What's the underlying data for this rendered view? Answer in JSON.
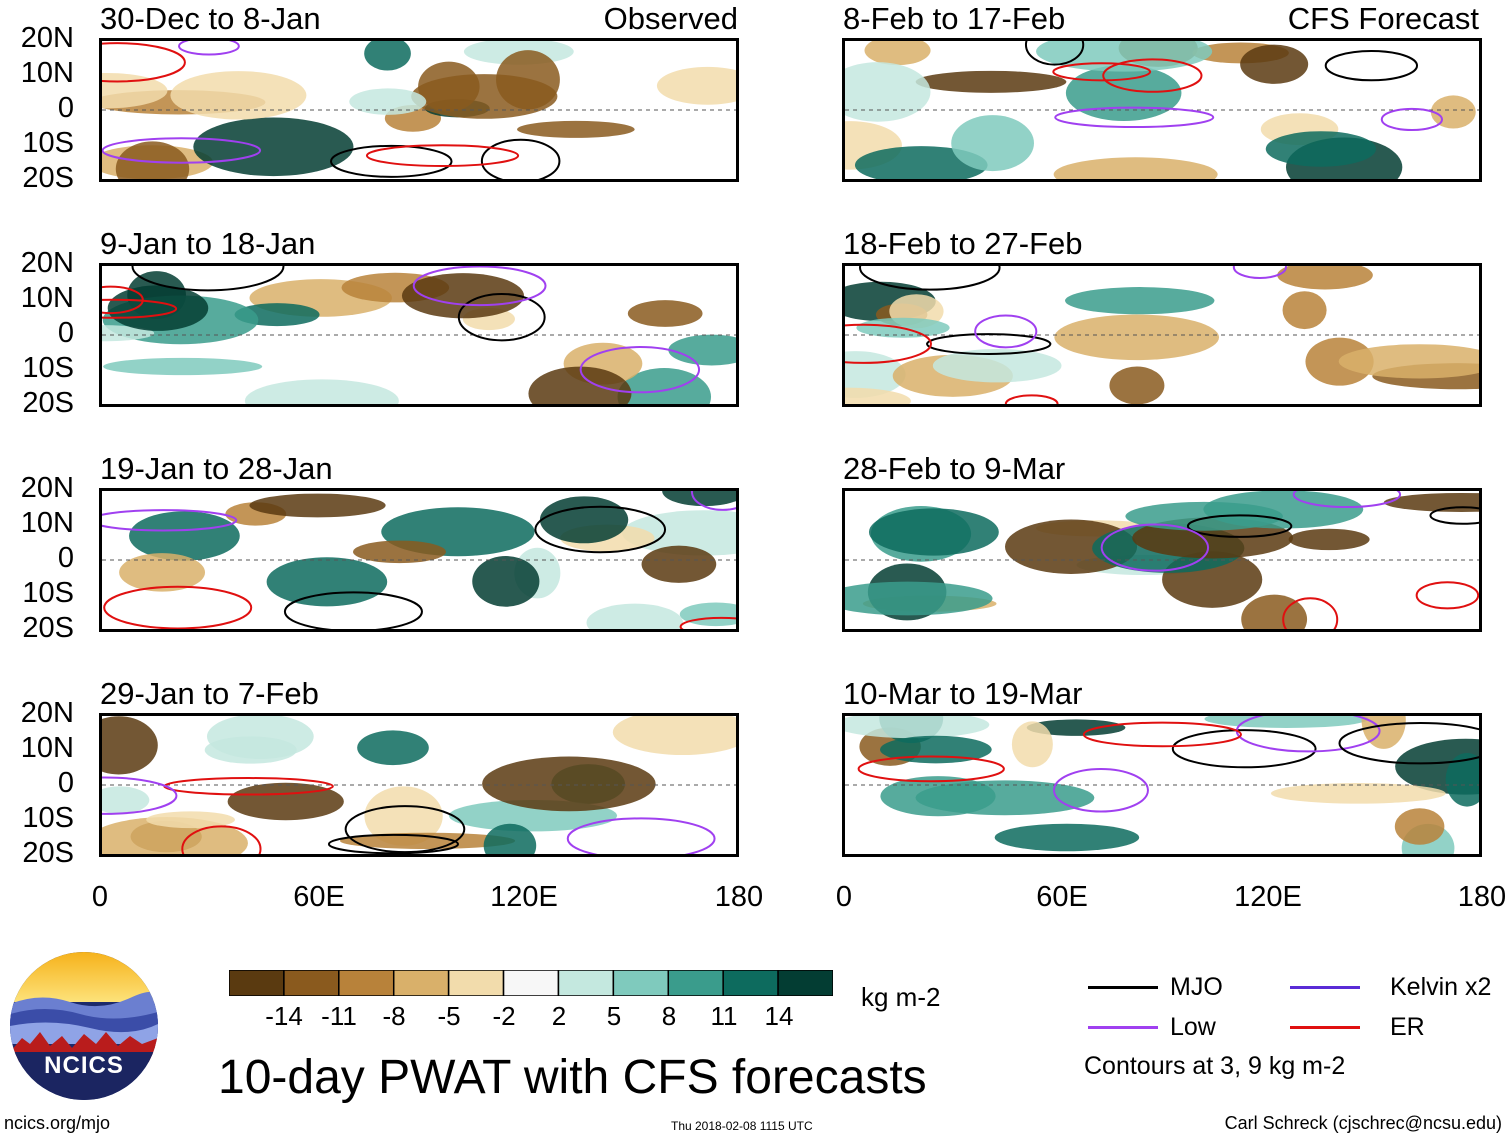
{
  "chart_data": {
    "type": "heatmap",
    "title": "10-day PWAT with CFS forecasts",
    "variable": "PWAT anomaly",
    "units": "kg m-2",
    "lon_ticks": [
      "0",
      "60E",
      "120E",
      "180"
    ],
    "lat_ticks": [
      "20N",
      "10N",
      "0",
      "10S",
      "20S"
    ],
    "lon_range": [
      0,
      180
    ],
    "lat_range": [
      -20,
      20
    ],
    "observed_tag": "Observed",
    "forecast_tag": "CFS Forecast",
    "observed_panels": [
      "30-Dec to 8-Jan",
      "9-Jan to 18-Jan",
      "19-Jan to 28-Jan",
      "29-Jan to 7-Feb"
    ],
    "forecast_panels": [
      "8-Feb to 17-Feb",
      "18-Feb to 27-Feb",
      "28-Feb to 9-Mar",
      "10-Mar to 19-Mar"
    ],
    "colorbar": {
      "ticks": [
        "-14",
        "-11",
        "-8",
        "-5",
        "-2",
        "2",
        "5",
        "8",
        "11",
        "14"
      ],
      "colors": [
        "#5a3a10",
        "#8a5a1e",
        "#b8823a",
        "#d9b06a",
        "#f2dcac",
        "#f7f7f7",
        "#c4e8df",
        "#7fcabd",
        "#3a9c8c",
        "#0d6b5e",
        "#033d33"
      ],
      "units": "kg m-2"
    },
    "legend": [
      {
        "label": "MJO",
        "color": "#000000"
      },
      {
        "label": "Kelvin x2",
        "color": "#5a2bd6"
      },
      {
        "label": "Low",
        "color": "#a040f0"
      },
      {
        "label": "ER",
        "color": "#e01010"
      }
    ],
    "contour_note": "Contours at 3, 9 kg m-2"
  },
  "footer": {
    "logo_text": "NCICS",
    "url": "ncics.org/mjo",
    "timestamp": "Thu 2018-02-08 1115 UTC",
    "author": "Carl Schreck (cjschrec@ncsu.edu)"
  }
}
